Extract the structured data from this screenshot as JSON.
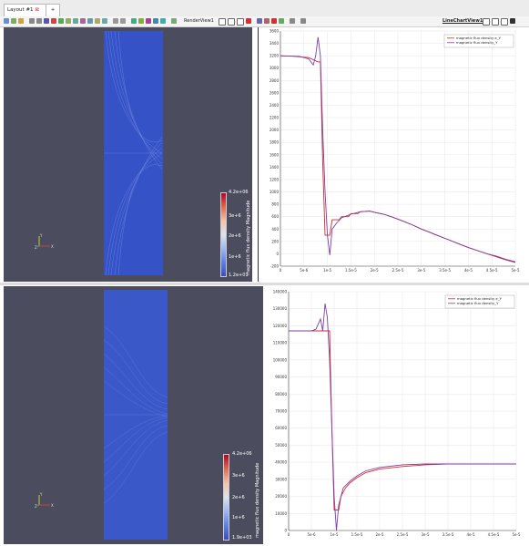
{
  "tabs": {
    "layout_label": "Layout #1",
    "add_label": "+"
  },
  "toolbar": {
    "render_view_label": "RenderView1",
    "line_chart_view_label": "LineChartView1"
  },
  "top_render": {
    "colorbar_title": "magnetic flux density Magnitude",
    "colorbar_labels": [
      "4.2e+06",
      "3e+6",
      "2e+6",
      "1e+6",
      "1.2e+01"
    ]
  },
  "bottom_render": {
    "colorbar_title": "magnetic flux density Magnitude",
    "colorbar_labels": [
      "4.2e+06",
      "3e+6",
      "2e+6",
      "1e+6",
      "1.9e+03"
    ]
  },
  "axes_triad": {
    "y": "Y",
    "z": "Z",
    "x": "X"
  },
  "colors": {
    "series_e_y": "#d62728",
    "series_y": "#7b3fa6",
    "render_bg": "#4b4d5e",
    "field": "#3553c6"
  },
  "chart_data": [
    {
      "type": "line",
      "title": "",
      "xlabel": "",
      "ylabel": "",
      "xlim": [
        0,
        5e-05
      ],
      "ylim": [
        -200,
        3600
      ],
      "xticks": [
        "0",
        "5e-6",
        "1e-5",
        "1.5e-5",
        "2e-5",
        "2.5e-5",
        "3e-5",
        "3.5e-5",
        "4e-5",
        "4.5e-5",
        "5e-5"
      ],
      "yticks": [
        "-200",
        "0",
        "200",
        "400",
        "600",
        "800",
        "1000",
        "1200",
        "1400",
        "1600",
        "1800",
        "2000",
        "2200",
        "2400",
        "2600",
        "2800",
        "3000",
        "3200",
        "3400",
        "3600"
      ],
      "legend": "top-right",
      "series": [
        {
          "name": "magnetic flux density e_Y",
          "points": [
            [
              0,
              3200
            ],
            [
              3e-06,
              3190
            ],
            [
              6e-06,
              3170
            ],
            [
              8e-06,
              3100
            ],
            [
              8.5e-06,
              3100
            ],
            [
              9e-06,
              1500
            ],
            [
              9.5e-06,
              300
            ],
            [
              1.05e-05,
              300
            ],
            [
              1.1e-05,
              550
            ],
            [
              1.25e-05,
              550
            ],
            [
              1.3e-05,
              600
            ],
            [
              1.45e-05,
              600
            ],
            [
              1.5e-05,
              650
            ],
            [
              1.65e-05,
              650
            ],
            [
              1.7e-05,
              680
            ],
            [
              1.9e-05,
              690
            ],
            [
              2e-05,
              670
            ],
            [
              2.2e-05,
              640
            ],
            [
              2.4e-05,
              590
            ],
            [
              2.6e-05,
              530
            ],
            [
              2.8e-05,
              470
            ],
            [
              3e-05,
              400
            ],
            [
              3.2e-05,
              340
            ],
            [
              3.4e-05,
              280
            ],
            [
              3.6e-05,
              220
            ],
            [
              3.8e-05,
              160
            ],
            [
              4e-05,
              100
            ],
            [
              4.2e-05,
              50
            ],
            [
              4.4e-05,
              0
            ],
            [
              4.6e-05,
              -40
            ],
            [
              4.8e-05,
              -90
            ],
            [
              5e-05,
              -130
            ]
          ]
        },
        {
          "name": "magnetic flux density_Y",
          "points": [
            [
              0,
              3200
            ],
            [
              4e-06,
              3190
            ],
            [
              6e-06,
              3150
            ],
            [
              7e-06,
              3050
            ],
            [
              7.5e-06,
              3200
            ],
            [
              8e-06,
              3500
            ],
            [
              8.5e-06,
              3200
            ],
            [
              9e-06,
              2000
            ],
            [
              9.5e-06,
              1000
            ],
            [
              1e-05,
              300
            ],
            [
              1.05e-05,
              -20
            ],
            [
              1.1e-05,
              400
            ],
            [
              1.2e-05,
              500
            ],
            [
              1.3e-05,
              580
            ],
            [
              1.5e-05,
              640
            ],
            [
              1.7e-05,
              680
            ],
            [
              1.9e-05,
              690
            ],
            [
              2e-05,
              670
            ],
            [
              2.2e-05,
              640
            ],
            [
              2.4e-05,
              590
            ],
            [
              2.6e-05,
              530
            ],
            [
              2.8e-05,
              470
            ],
            [
              3e-05,
              400
            ],
            [
              3.2e-05,
              340
            ],
            [
              3.4e-05,
              280
            ],
            [
              3.6e-05,
              220
            ],
            [
              3.8e-05,
              160
            ],
            [
              4e-05,
              100
            ],
            [
              4.2e-05,
              50
            ],
            [
              4.4e-05,
              0
            ],
            [
              4.6e-05,
              -50
            ],
            [
              4.8e-05,
              -100
            ],
            [
              5e-05,
              -140
            ]
          ]
        }
      ]
    },
    {
      "type": "line",
      "title": "",
      "xlabel": "",
      "ylabel": "",
      "xlim": [
        0,
        5e-05
      ],
      "ylim": [
        0,
        140000
      ],
      "xticks": [
        "0",
        "5e-6",
        "1e-5",
        "1.5e-5",
        "2e-5",
        "2.5e-5",
        "3e-5",
        "3.5e-5",
        "4e-5",
        "4.5e-5",
        "5e-5"
      ],
      "yticks": [
        "0",
        "10000",
        "20000",
        "30000",
        "40000",
        "50000",
        "60000",
        "70000",
        "80000",
        "90000",
        "100000",
        "110000",
        "120000",
        "130000",
        "140000"
      ],
      "legend": "top-right",
      "series": [
        {
          "name": "magnetic flux density e_Y",
          "points": [
            [
              0,
              117000
            ],
            [
              5e-06,
              117000
            ],
            [
              8e-06,
              117000
            ],
            [
              9e-06,
              117000
            ],
            [
              9.5e-06,
              60000
            ],
            [
              1e-05,
              12000
            ],
            [
              1.1e-05,
              12000
            ],
            [
              1.15e-05,
              20000
            ],
            [
              1.25e-05,
              25000
            ],
            [
              1.35e-05,
              28000
            ],
            [
              1.5e-05,
              31000
            ],
            [
              1.7e-05,
              34000
            ],
            [
              2e-05,
              36000
            ],
            [
              2.5e-05,
              37500
            ],
            [
              3e-05,
              38500
            ],
            [
              3.5e-05,
              39000
            ],
            [
              4e-05,
              39000
            ],
            [
              5e-05,
              39000
            ]
          ]
        },
        {
          "name": "magnetic flux density_Y",
          "points": [
            [
              0,
              117000
            ],
            [
              5e-06,
              117000
            ],
            [
              6e-06,
              118000
            ],
            [
              7e-06,
              124000
            ],
            [
              7.5e-06,
              117000
            ],
            [
              8e-06,
              133000
            ],
            [
              8.5e-06,
              125000
            ],
            [
              9e-06,
              100000
            ],
            [
              9.5e-06,
              60000
            ],
            [
              1e-05,
              20000
            ],
            [
              1.05e-05,
              0
            ],
            [
              1.1e-05,
              15000
            ],
            [
              1.2e-05,
              25000
            ],
            [
              1.35e-05,
              29000
            ],
            [
              1.5e-05,
              32000
            ],
            [
              1.7e-05,
              35000
            ],
            [
              2e-05,
              37000
            ],
            [
              2.5e-05,
              38500
            ],
            [
              3e-05,
              39000
            ],
            [
              4e-05,
              39000
            ],
            [
              5e-05,
              39000
            ]
          ]
        }
      ]
    }
  ]
}
